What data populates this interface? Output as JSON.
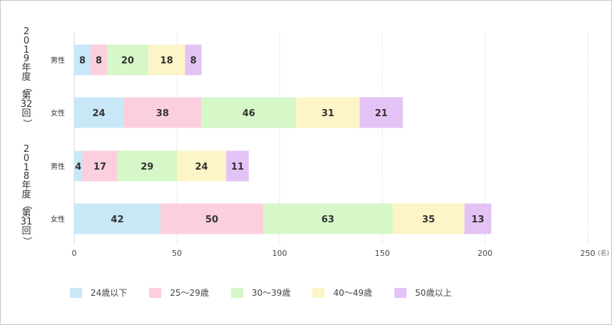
{
  "chart_data": {
    "type": "bar",
    "orientation": "horizontal",
    "stacked": true,
    "x_unit": "(名)",
    "xlim": [
      0,
      250
    ],
    "x_ticks": [
      "0",
      "50",
      "100",
      "150",
      "200",
      "250"
    ],
    "grid": true,
    "legend_position": "bottom",
    "groups": [
      {
        "label": "2019年度（第32回）",
        "label_chars": [
          "2",
          "0",
          "1",
          "9",
          "年",
          "度",
          "（",
          "第",
          "32",
          "回",
          "）"
        ]
      },
      {
        "label": "2018年度（第31回）",
        "label_chars": [
          "2",
          "0",
          "1",
          "8",
          "年",
          "度",
          "（",
          "第",
          "31",
          "回",
          "）"
        ]
      }
    ],
    "categories": [
      "男性",
      "女性",
      "男性",
      "女性"
    ],
    "category_group": [
      0,
      0,
      1,
      1
    ],
    "series": [
      {
        "name": "24歳以下",
        "color": "#c9e8f7",
        "values": [
          8,
          24,
          4,
          42
        ]
      },
      {
        "name": "25〜29歳",
        "color": "#fccfdf",
        "values": [
          8,
          38,
          17,
          50
        ]
      },
      {
        "name": "30〜39歳",
        "color": "#d6f7c7",
        "values": [
          20,
          46,
          29,
          63
        ]
      },
      {
        "name": "40〜49歳",
        "color": "#fdf4c7",
        "values": [
          18,
          31,
          24,
          35
        ]
      },
      {
        "name": "50歳以上",
        "color": "#e3c3f5",
        "values": [
          8,
          21,
          11,
          13
        ]
      }
    ]
  }
}
